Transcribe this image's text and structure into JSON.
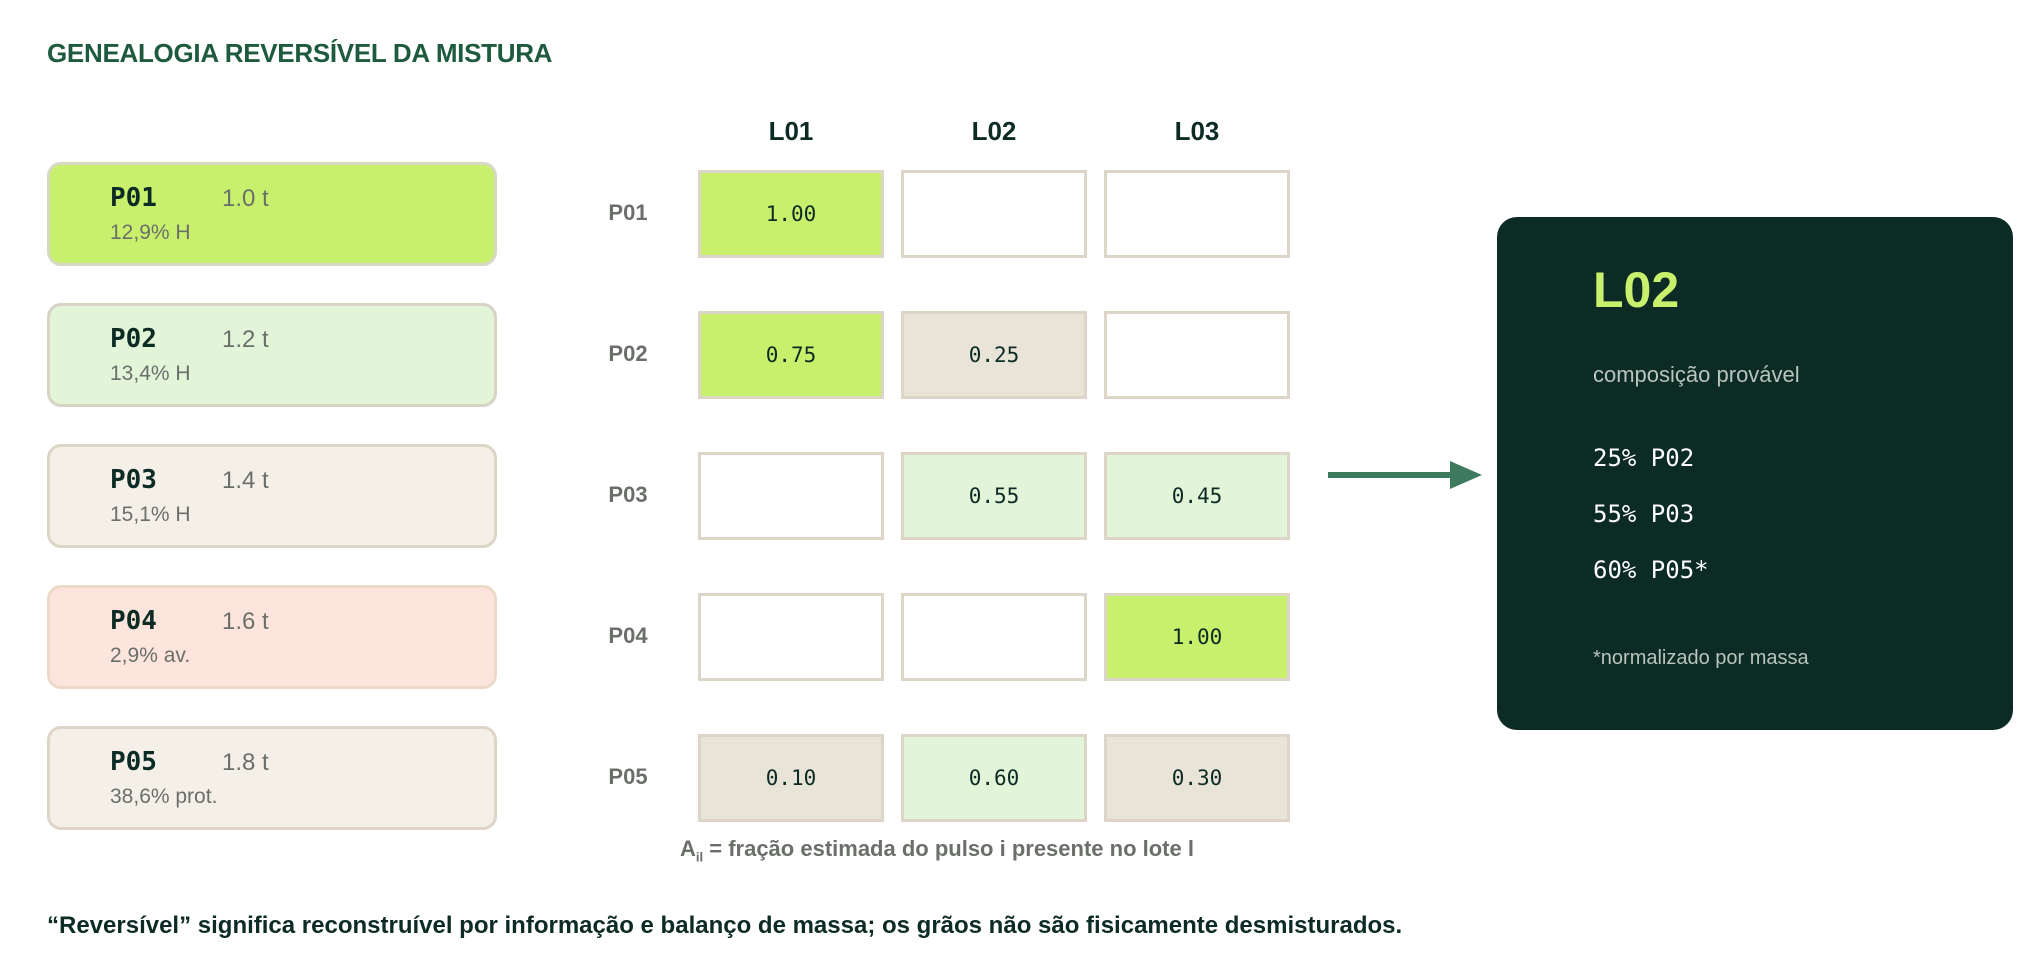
{
  "title": "GENEALOGIA REVERSÍVEL DA MISTURA",
  "pulses": [
    {
      "id": "P01",
      "mass": "1.0 t",
      "note": "12,9% H",
      "fill": "#c9f06c",
      "border": "#d6d9c4"
    },
    {
      "id": "P02",
      "mass": "1.2 t",
      "note": "13,4% H",
      "fill": "#e3f5d9",
      "border": "#d8d3c4"
    },
    {
      "id": "P03",
      "mass": "1.4 t",
      "note": "15,1% H",
      "fill": "#f4f0e8",
      "border": "#ddd6c8"
    },
    {
      "id": "P04",
      "mass": "1.6 t",
      "note": "2,9% av.",
      "fill": "#fde5dd",
      "border": "#ecd9c8"
    },
    {
      "id": "P05",
      "mass": "1.8 t",
      "note": "38,6% prot.",
      "fill": "#f4f0e8",
      "border": "#ddd6c8"
    }
  ],
  "matrix": {
    "columns": [
      "L01",
      "L02",
      "L03"
    ],
    "rows": [
      "P01",
      "P02",
      "P03",
      "P04",
      "P05"
    ],
    "values": [
      [
        "1.00",
        "",
        ""
      ],
      [
        "0.75",
        "0.25",
        ""
      ],
      [
        "",
        "0.55",
        "0.45"
      ],
      [
        "",
        "",
        "1.00"
      ],
      [
        "0.10",
        "0.60",
        "0.30"
      ]
    ],
    "fills": [
      [
        "#c9f06c",
        "#ffffff",
        "#ffffff"
      ],
      [
        "#c9f06c",
        "#e8e4d8",
        "#ffffff"
      ],
      [
        "#ffffff",
        "#e3f5d9",
        "#e3f5d9"
      ],
      [
        "#ffffff",
        "#ffffff",
        "#c9f06c"
      ],
      [
        "#e8e4d8",
        "#e3f5d9",
        "#e8e4d8"
      ]
    ],
    "caption_prefix": "A",
    "caption_subscript": "il",
    "caption_text": " = fração estimada do pulso i presente no lote l"
  },
  "result": {
    "title": "L02",
    "subtitle": "composição provável",
    "lines": [
      "25% P02",
      "55% P03",
      "60% P05*"
    ],
    "note": "*normalizado por massa"
  },
  "footnote": "“Reversível” significa reconstruível por informação e balanço de massa; os grãos não são fisicamente desmisturados.",
  "colors": {
    "dark_green": "#0d2b25",
    "lime": "#c9f06c",
    "arrow": "#3d7a5e"
  }
}
